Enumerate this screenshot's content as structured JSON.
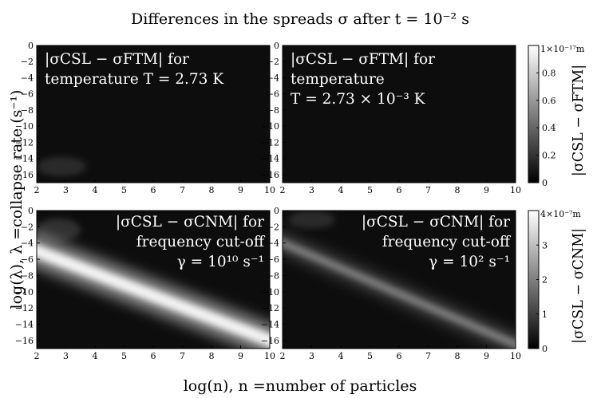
{
  "title": "Differences in the spreads σ after t = 10⁻² s",
  "xlabel": "log(n),  n =number of particles",
  "ylabel": "log(λ), λ =collapse rate (s⁻¹)",
  "colors": {
    "background": "#0d0d0d",
    "band": "#ffffff",
    "axis": "#000000"
  },
  "chart_data": [
    {
      "type": "heatmap",
      "panel": "top-left",
      "annotation": [
        "|σCSL − σFTM| for",
        "temperature T = 2.73 K"
      ],
      "xlim": [
        2,
        10
      ],
      "ylim": [
        -17,
        0
      ],
      "xticks": [
        2,
        3,
        4,
        5,
        6,
        7,
        8,
        9,
        10
      ],
      "yticks": [
        0,
        -2,
        -4,
        -6,
        -8,
        -10,
        -12,
        -14,
        -16
      ],
      "colorbar": "ftm",
      "features": [
        {
          "kind": "blob",
          "x": [
            2,
            3.7
          ],
          "y": [
            -16.2,
            -13.8
          ],
          "peak": 0.12
        }
      ]
    },
    {
      "type": "heatmap",
      "panel": "top-right",
      "annotation": [
        "|σCSL − σFTM| for",
        "temperature",
        "T = 2.73 × 10⁻³ K"
      ],
      "xlim": [
        2,
        10
      ],
      "ylim": [
        -17,
        0
      ],
      "xticks": [
        2,
        3,
        4,
        5,
        6,
        7,
        8,
        9,
        10
      ],
      "yticks": [
        0,
        -2,
        -4,
        -6,
        -8,
        -10,
        -12,
        -14,
        -16
      ],
      "colorbar": "ftm",
      "features": []
    },
    {
      "type": "heatmap",
      "panel": "bottom-left",
      "annotation": [
        "|σCSL − σCNM| for",
        "frequency cut-off",
        "γ = 10¹⁰ s⁻¹"
      ],
      "xlim": [
        2,
        10
      ],
      "ylim": [
        -17,
        0
      ],
      "xticks": [
        2,
        3,
        4,
        5,
        6,
        7,
        8,
        9,
        10
      ],
      "yticks": [
        0,
        -2,
        -4,
        -6,
        -8,
        -10,
        -12,
        -14,
        -16
      ],
      "colorbar": "cnm",
      "features": [
        {
          "kind": "band",
          "from": [
            2,
            -5
          ],
          "to": [
            10,
            -16
          ],
          "width": 2.2,
          "peak": 0.9
        },
        {
          "kind": "blob",
          "x": [
            2,
            3.5
          ],
          "y": [
            -3.8,
            -1
          ],
          "peak": 0.15
        }
      ]
    },
    {
      "type": "heatmap",
      "panel": "bottom-right",
      "annotation": [
        "|σCSL − σCNM| for",
        "frequency cut-off",
        "γ = 10² s⁻¹"
      ],
      "xlim": [
        2,
        10
      ],
      "ylim": [
        -17,
        0
      ],
      "xticks": [
        2,
        3,
        4,
        5,
        6,
        7,
        8,
        9,
        10
      ],
      "yticks": [
        0,
        -2,
        -4,
        -6,
        -8,
        -10,
        -12,
        -14,
        -16
      ],
      "colorbar": "cnm",
      "features": [
        {
          "kind": "band",
          "from": [
            2,
            -4
          ],
          "to": [
            10,
            -16.5
          ],
          "width": 1.4,
          "peak": 0.35
        },
        {
          "kind": "blob",
          "x": [
            2.2,
            3.8
          ],
          "y": [
            -2.2,
            0
          ],
          "peak": 0.12
        }
      ]
    }
  ],
  "colorbars": {
    "ftm": {
      "label": "|σCSL − σFTM|",
      "max": "1×10⁻¹⁷m",
      "ticks": [
        "0.8",
        "0.6",
        "0.4",
        "0.2",
        "0"
      ],
      "tick_values": [
        0.8,
        0.6,
        0.4,
        0.2,
        0
      ]
    },
    "cnm": {
      "label": "|σCSL − σCNM|",
      "max": "4×10⁻⁷m",
      "ticks": [
        "3",
        "2",
        "1",
        "0"
      ],
      "tick_values": [
        3,
        2,
        1,
        0
      ],
      "range": [
        0,
        4
      ]
    }
  }
}
